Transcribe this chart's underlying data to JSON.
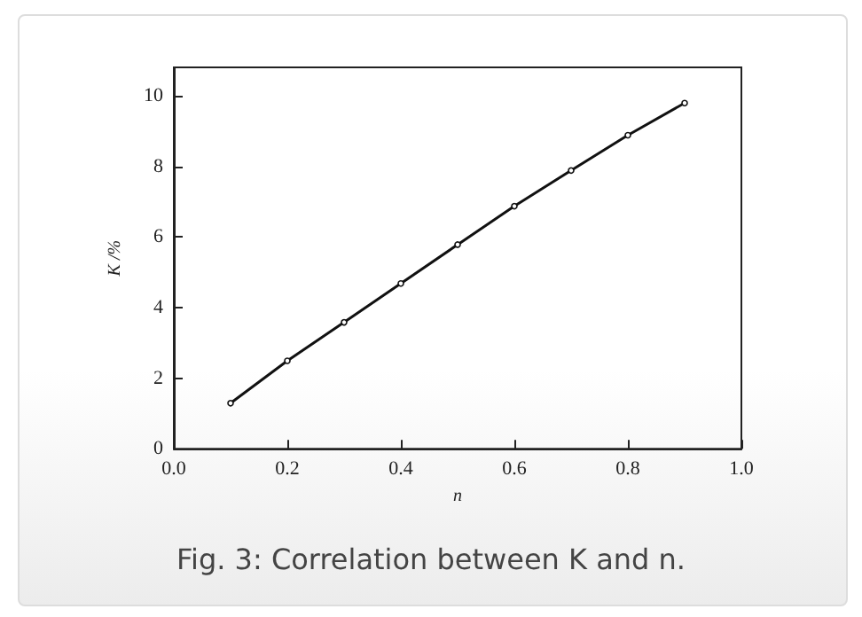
{
  "chart_data": {
    "type": "line",
    "x": [
      0.1,
      0.2,
      0.3,
      0.4,
      0.5,
      0.6,
      0.7,
      0.8,
      0.9
    ],
    "series": [
      {
        "color": "#111111",
        "values": [
          1.29,
          2.49,
          3.58,
          4.68,
          5.78,
          6.87,
          7.88,
          8.88,
          9.79
        ]
      }
    ],
    "xlabel": "n",
    "ylabel": "K /%",
    "xlim": [
      0,
      1
    ],
    "xticks": [
      {
        "value": 0,
        "label": "0.0"
      },
      0.2,
      0.4,
      0.6,
      0.8,
      {
        "value": 1,
        "label": "1.0"
      }
    ],
    "ylim": [
      0,
      10.8
    ],
    "yticks": [
      0,
      2,
      4,
      6,
      8,
      10
    ],
    "grid": false,
    "marker": "circle",
    "line_style": "solid",
    "annotations": [
      "Fig. 3: Correlation between K and n."
    ]
  }
}
